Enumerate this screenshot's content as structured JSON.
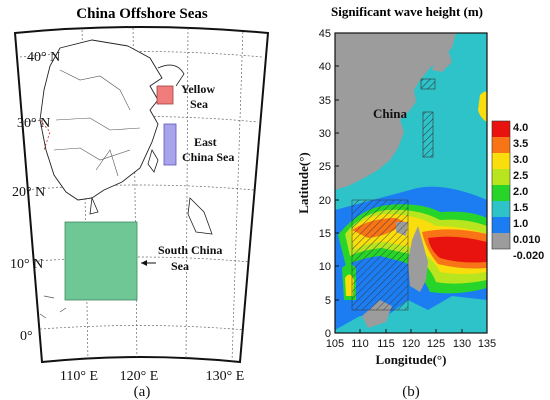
{
  "panel_a": {
    "title": "China Offshore Seas",
    "lat_labels": [
      "40° N",
      "30° N",
      "20° N",
      "10° N",
      "0°"
    ],
    "lon_labels": [
      "110° E",
      "120° E",
      "130° E"
    ],
    "sea_labels": {
      "yellow": [
        "Yellow",
        "Sea"
      ],
      "east": [
        "East",
        "China Sea"
      ],
      "south": [
        "South China",
        "Sea"
      ]
    },
    "caption": "(a)",
    "colors": {
      "yellow_box": "#f07c7c",
      "east_box": "#a9a3ec",
      "south_box": "#6fc795"
    }
  },
  "panel_b": {
    "title": "Significant wave height (m)",
    "xlabel": "Longitude(°)",
    "ylabel": "Latitude(°)",
    "land_label": "China",
    "caption": "(b)",
    "x_ticks": [
      "105",
      "110",
      "115",
      "120",
      "125",
      "130",
      "135"
    ],
    "y_ticks": [
      "0",
      "5",
      "10",
      "15",
      "20",
      "25",
      "30",
      "35",
      "40",
      "45"
    ],
    "colorbar": {
      "labels": [
        "4.0",
        "3.5",
        "3.0",
        "2.5",
        "2.0",
        "1.5",
        "1.0",
        "0.010",
        "-0.020"
      ],
      "colors": [
        "#e8130e",
        "#f87417",
        "#f9dd0d",
        "#b9e51e",
        "#27d52a",
        "#2ec3c9",
        "#1c7df2",
        "#9c9c9c"
      ]
    },
    "land_color": "#9c9c9c"
  }
}
